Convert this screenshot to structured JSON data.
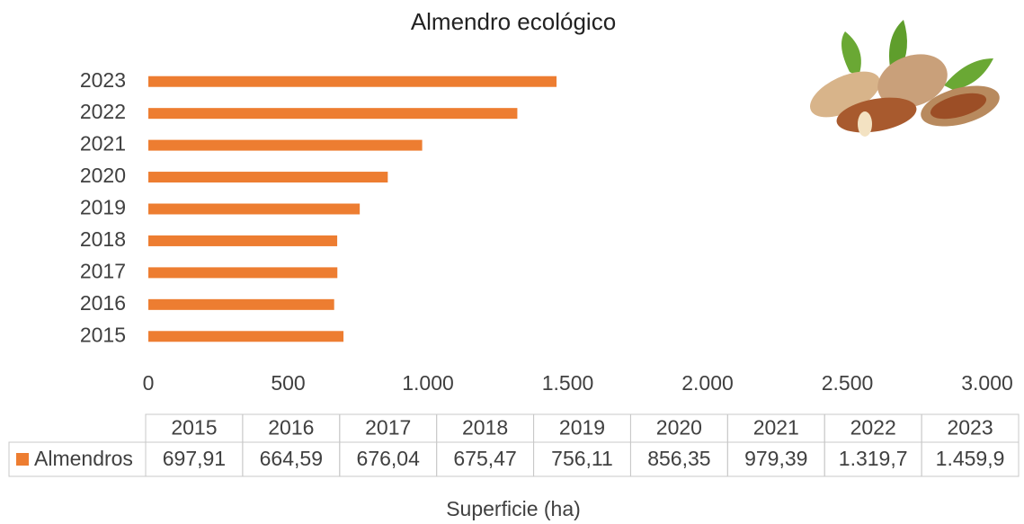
{
  "chart_data": {
    "type": "barh",
    "title": "Almendro ecológico",
    "x_label": "Superficie (ha)",
    "categories": [
      "2015",
      "2016",
      "2017",
      "2018",
      "2019",
      "2020",
      "2021",
      "2022",
      "2023"
    ],
    "series": [
      {
        "name": "Almendros",
        "color": "#ed7d31",
        "values": [
          697.91,
          664.59,
          676.04,
          675.47,
          756.11,
          856.35,
          979.39,
          1319.7,
          1459.9
        ],
        "value_labels": [
          "697,91",
          "664,59",
          "676,04",
          "675,47",
          "756,11",
          "856,35",
          "979,39",
          "1.319,7",
          "1.459,9"
        ]
      }
    ],
    "xlim": [
      0,
      3000
    ],
    "xticks": [
      0,
      500,
      {
        "value": 1000,
        "label": "1.000"
      },
      {
        "value": 1500,
        "label": "1.500"
      },
      {
        "value": 2000,
        "label": "2.000"
      },
      {
        "value": 2500,
        "label": "2.500"
      },
      {
        "value": 3000,
        "label": "3.000"
      }
    ],
    "grid": false,
    "data_table": true
  }
}
